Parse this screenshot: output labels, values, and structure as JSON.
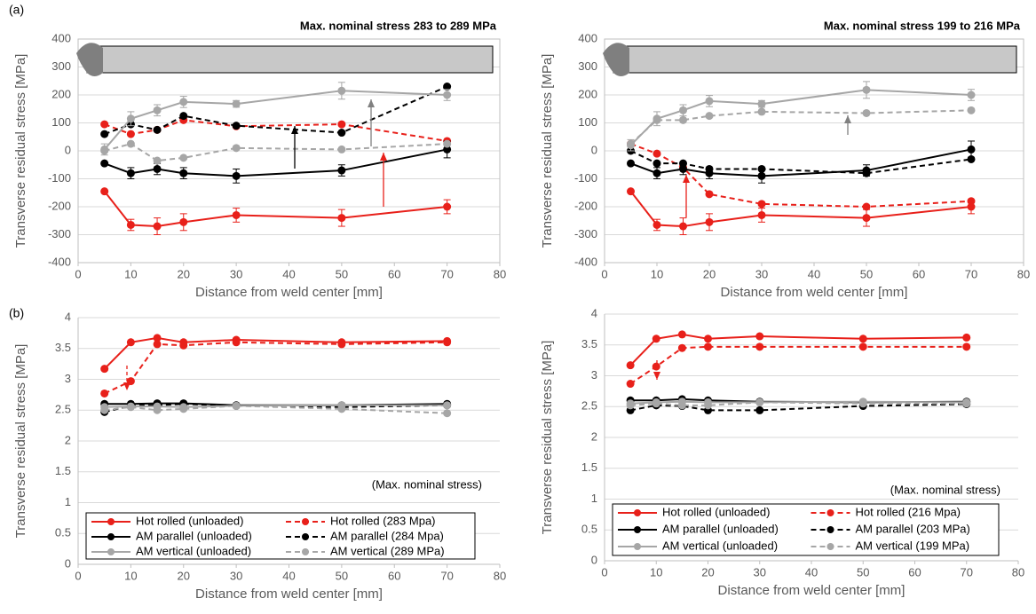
{
  "chart_data": [
    {
      "type": "line",
      "panel_label": "(a)",
      "title": "Max. nominal stress 283 to 289 MPa",
      "x_label": "Distance from weld center [mm]",
      "y_label": "Transverse residual stress [MPa]",
      "xlim": [
        0,
        80
      ],
      "xticks": [
        0,
        10,
        20,
        30,
        40,
        50,
        60,
        70,
        80
      ],
      "ylim": [
        -400,
        400
      ],
      "yticks": [
        -400,
        -300,
        -200,
        -100,
        0,
        100,
        200,
        300,
        400
      ],
      "grid": true,
      "frame": true,
      "x": [
        5,
        10,
        15,
        20,
        30,
        50,
        70
      ],
      "series": [
        {
          "color": "#e8201a",
          "line_style": "solid",
          "values": [
            -145,
            -265,
            -270,
            -255,
            -230,
            -240,
            -200
          ],
          "errors": [
            0,
            20,
            30,
            30,
            25,
            30,
            25
          ]
        },
        {
          "color": "#e8201a",
          "line_style": "dashed",
          "values": [
            95,
            60,
            75,
            110,
            88,
            95,
            35
          ]
        },
        {
          "color": "#000000",
          "line_style": "solid",
          "values": [
            -45,
            -80,
            -65,
            -80,
            -90,
            -70,
            5
          ],
          "errors": [
            0,
            20,
            20,
            20,
            25,
            20,
            30
          ]
        },
        {
          "color": "#000000",
          "line_style": "dashed",
          "values": [
            60,
            95,
            75,
            125,
            90,
            65,
            230
          ]
        },
        {
          "color": "#a6a6a6",
          "line_style": "solid",
          "values": [
            5,
            115,
            145,
            175,
            168,
            215,
            200
          ],
          "errors": [
            20,
            25,
            20,
            20,
            12,
            30,
            20
          ]
        },
        {
          "color": "#a6a6a6",
          "line_style": "dashed",
          "values": [
            0,
            25,
            -35,
            -25,
            10,
            5,
            25
          ]
        }
      ]
    },
    {
      "type": "line",
      "title": "Max. nominal stress 199 to 216 MPa",
      "x_label": "Distance from weld center [mm]",
      "y_label": "Transverse residual stress [MPa]",
      "xlim": [
        0,
        80
      ],
      "xticks": [
        0,
        10,
        20,
        30,
        40,
        50,
        60,
        70,
        80
      ],
      "ylim": [
        -400,
        400
      ],
      "yticks": [
        -400,
        -300,
        -200,
        -100,
        0,
        100,
        200,
        300,
        400
      ],
      "grid": true,
      "frame": true,
      "x": [
        5,
        10,
        15,
        20,
        30,
        50,
        70
      ],
      "series": [
        {
          "color": "#e8201a",
          "line_style": "solid",
          "values": [
            -145,
            -265,
            -270,
            -255,
            -230,
            -240,
            -200
          ],
          "errors": [
            0,
            20,
            30,
            30,
            25,
            30,
            25
          ]
        },
        {
          "color": "#e8201a",
          "line_style": "dashed",
          "values": [
            25,
            -10,
            -60,
            -155,
            -190,
            -200,
            -180
          ]
        },
        {
          "color": "#000000",
          "line_style": "solid",
          "values": [
            -45,
            -80,
            -65,
            -80,
            -90,
            -70,
            5
          ],
          "errors": [
            0,
            20,
            20,
            20,
            25,
            20,
            30
          ]
        },
        {
          "color": "#000000",
          "line_style": "dashed",
          "values": [
            0,
            -45,
            -45,
            -65,
            -65,
            -80,
            -30
          ]
        },
        {
          "color": "#a6a6a6",
          "line_style": "solid",
          "values": [
            20,
            115,
            145,
            178,
            168,
            218,
            200
          ],
          "errors": [
            20,
            25,
            20,
            20,
            12,
            30,
            20
          ]
        },
        {
          "color": "#a6a6a6",
          "line_style": "dashed",
          "values": [
            25,
            110,
            110,
            125,
            140,
            135,
            145
          ]
        }
      ]
    },
    {
      "type": "line",
      "panel_label": "(b)",
      "note": "(Max. nominal stress)",
      "x_label": "Distance from weld center [mm]",
      "y_label": "Transverse residual stress [MPa]",
      "xlim": [
        0,
        80
      ],
      "xticks": [
        0,
        10,
        20,
        30,
        40,
        50,
        60,
        70,
        80
      ],
      "ylim": [
        0,
        4
      ],
      "yticks": [
        0,
        0.5,
        1,
        1.5,
        2,
        2.5,
        3,
        3.5,
        4
      ],
      "grid": true,
      "frame": false,
      "legend": "lower center",
      "x": [
        5,
        10,
        15,
        20,
        30,
        50,
        70
      ],
      "series": [
        {
          "name": "Hot rolled (unloaded)",
          "color": "#e8201a",
          "line_style": "solid",
          "values": [
            3.17,
            3.6,
            3.67,
            3.6,
            3.64,
            3.6,
            3.62
          ]
        },
        {
          "name": "Hot rolled (283 Mpa)",
          "color": "#e8201a",
          "line_style": "dashed",
          "values": [
            2.77,
            2.97,
            3.57,
            3.55,
            3.6,
            3.57,
            3.6
          ]
        },
        {
          "name": "AM parallel (unloaded)",
          "color": "#000000",
          "line_style": "solid",
          "values": [
            2.6,
            2.6,
            2.61,
            2.61,
            2.58,
            2.58,
            2.6
          ]
        },
        {
          "name": "AM parallel (284 Mpa)",
          "color": "#000000",
          "line_style": "dashed",
          "values": [
            2.47,
            2.57,
            2.58,
            2.6,
            2.57,
            2.55,
            2.58
          ]
        },
        {
          "name": "AM vertical (unloaded)",
          "color": "#a6a6a6",
          "line_style": "solid",
          "values": [
            2.55,
            2.56,
            2.56,
            2.55,
            2.57,
            2.58,
            2.58
          ]
        },
        {
          "name": "AM vertical (289 MPa)",
          "color": "#a6a6a6",
          "line_style": "dashed",
          "values": [
            2.5,
            2.55,
            2.5,
            2.52,
            2.57,
            2.52,
            2.45
          ]
        }
      ]
    },
    {
      "type": "line",
      "note": "(Max. nominal stress)",
      "x_label": "Distance from weld center [mm]",
      "y_label": "Transverse residual stress [MPa]",
      "xlim": [
        0,
        80
      ],
      "xticks": [
        0,
        10,
        20,
        30,
        40,
        50,
        60,
        70,
        80
      ],
      "ylim": [
        0,
        4
      ],
      "yticks": [
        0,
        0.5,
        1,
        1.5,
        2,
        2.5,
        3,
        3.5,
        4
      ],
      "grid": true,
      "frame": false,
      "legend": "lower center",
      "x": [
        5,
        10,
        15,
        20,
        30,
        50,
        70
      ],
      "series": [
        {
          "name": "Hot rolled (unloaded)",
          "color": "#e8201a",
          "line_style": "solid",
          "values": [
            3.17,
            3.6,
            3.67,
            3.6,
            3.64,
            3.6,
            3.62
          ]
        },
        {
          "name": "Hot rolled (216 Mpa)",
          "color": "#e8201a",
          "line_style": "dashed",
          "values": [
            2.87,
            3.15,
            3.45,
            3.47,
            3.47,
            3.47,
            3.47
          ]
        },
        {
          "name": "AM parallel (unloaded)",
          "color": "#000000",
          "line_style": "solid",
          "values": [
            2.6,
            2.6,
            2.62,
            2.6,
            2.58,
            2.57,
            2.58
          ]
        },
        {
          "name": "AM parallel (203 MPa)",
          "color": "#000000",
          "line_style": "dashed",
          "values": [
            2.44,
            2.52,
            2.51,
            2.44,
            2.44,
            2.51,
            2.54
          ]
        },
        {
          "name": "AM vertical (unloaded)",
          "color": "#a6a6a6",
          "line_style": "solid",
          "values": [
            2.55,
            2.57,
            2.58,
            2.57,
            2.57,
            2.58,
            2.57
          ]
        },
        {
          "name": "AM vertical (199 MPa)",
          "color": "#a6a6a6",
          "line_style": "dashed",
          "values": [
            2.52,
            2.55,
            2.52,
            2.52,
            2.57,
            2.55,
            2.55
          ]
        }
      ]
    }
  ]
}
